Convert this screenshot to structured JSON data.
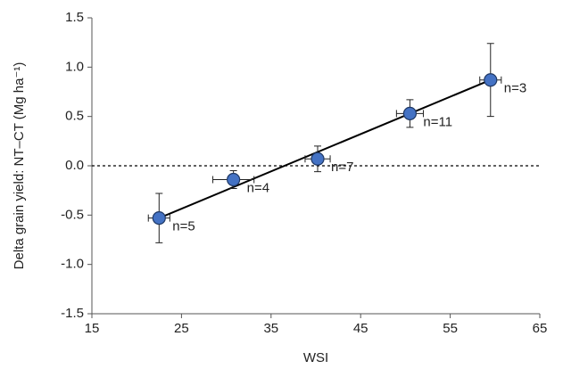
{
  "chart_data": {
    "type": "scatter",
    "xlabel": "WSI",
    "ylabel": "Delta grain yield: NT–CT (Mg ha⁻¹)",
    "x": [
      22.5,
      30.8,
      40.2,
      50.5,
      59.5
    ],
    "values": [
      -0.53,
      -0.14,
      0.07,
      0.53,
      0.87
    ],
    "x_errors": [
      1.2,
      2.3,
      1.4,
      1.5,
      1.2
    ],
    "y_errors": [
      0.25,
      0.09,
      0.13,
      0.14,
      0.37
    ],
    "labels": [
      "n=5",
      "n=4",
      "n=7",
      "n=11",
      "n=3"
    ],
    "color": "#4472c4",
    "trendline": {
      "x": [
        22.5,
        59.5
      ],
      "y": [
        -0.53,
        0.87
      ]
    },
    "reference_line": 0,
    "xlim": [
      15,
      65
    ],
    "xticks": [
      15,
      25,
      35,
      45,
      55,
      65
    ],
    "ylim": [
      -1.5,
      1.5
    ],
    "yticks": [
      -1.5,
      {
        "value": -1,
        "label": "-1.0"
      },
      -0.5,
      {
        "value": 0,
        "label": "0.0"
      },
      0.5,
      {
        "value": 1,
        "label": "1.0"
      },
      1.5
    ]
  }
}
